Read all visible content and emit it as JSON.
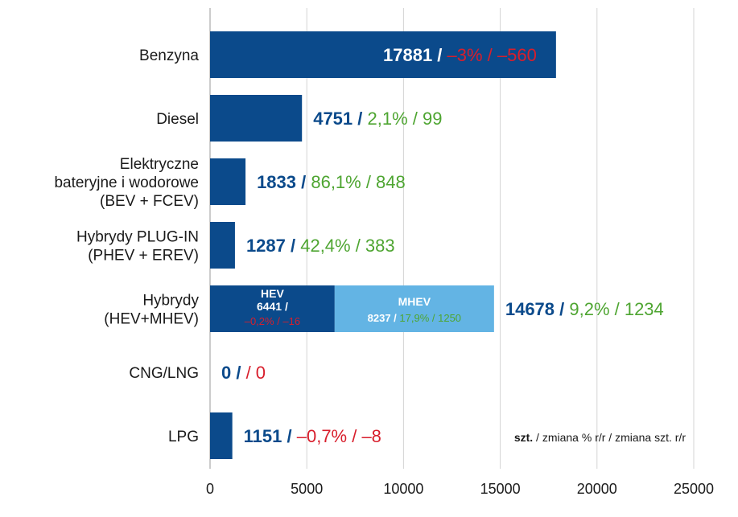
{
  "colors": {
    "primary": "#0b4a8b",
    "mhev": "#63b4e4",
    "positive": "#4ea531",
    "negative": "#d81e2c",
    "grid": "#d4d4d4",
    "text": "#1a1a1a"
  },
  "legend": {
    "unit": "szt.",
    "rest": " / zmiana % r/r / zmiana szt. r/r"
  },
  "chart_data": {
    "type": "bar",
    "orientation": "horizontal",
    "stacked": true,
    "xlim": [
      0,
      25000
    ],
    "x_ticks": [
      "0",
      "5000",
      "10000",
      "15000",
      "20000",
      "25000"
    ],
    "grid": true,
    "categories": [
      {
        "label_lines": [
          "Benzyna"
        ],
        "value": 17881,
        "value_label": "17881",
        "change_pct": "–3%",
        "change_units": "–560",
        "trend": "negative",
        "label_inside": true
      },
      {
        "label_lines": [
          "Diesel"
        ],
        "value": 4751,
        "value_label": "4751",
        "change_pct": "2,1%",
        "change_units": "99",
        "trend": "positive"
      },
      {
        "label_lines": [
          "Elektryczne",
          "bateryjne i wodorowe",
          "(BEV + FCEV)"
        ],
        "value": 1833,
        "value_label": "1833",
        "change_pct": "86,1%",
        "change_units": "848",
        "trend": "positive"
      },
      {
        "label_lines": [
          "Hybrydy PLUG-IN",
          "(PHEV + EREV)"
        ],
        "value": 1287,
        "value_label": "1287",
        "change_pct": "42,4%",
        "change_units": "383",
        "trend": "positive"
      },
      {
        "label_lines": [
          "Hybrydy",
          "(HEV+MHEV)"
        ],
        "value": 14678,
        "value_label": "14678",
        "change_pct": "9,2%",
        "change_units": "1234",
        "trend": "positive",
        "segments": [
          {
            "name": "HEV",
            "value": 6441,
            "value_label": "6441",
            "change_pct": "–0,2%",
            "change_units": "–16",
            "trend": "negative",
            "color_key": "primary",
            "layout": "stacked"
          },
          {
            "name": "MHEV",
            "value": 8237,
            "value_label": "8237",
            "change_pct": "17,9%",
            "change_units": "1250",
            "trend": "positive",
            "color_key": "mhev",
            "layout": "inline"
          }
        ]
      },
      {
        "label_lines": [
          "CNG/LNG"
        ],
        "value": 0,
        "value_label": "0",
        "change_pct": "",
        "change_units": "0",
        "trend": "negative"
      },
      {
        "label_lines": [
          "LPG"
        ],
        "value": 1151,
        "value_label": "1151",
        "change_pct": "–0,7%",
        "change_units": "–8",
        "trend": "negative"
      }
    ]
  }
}
